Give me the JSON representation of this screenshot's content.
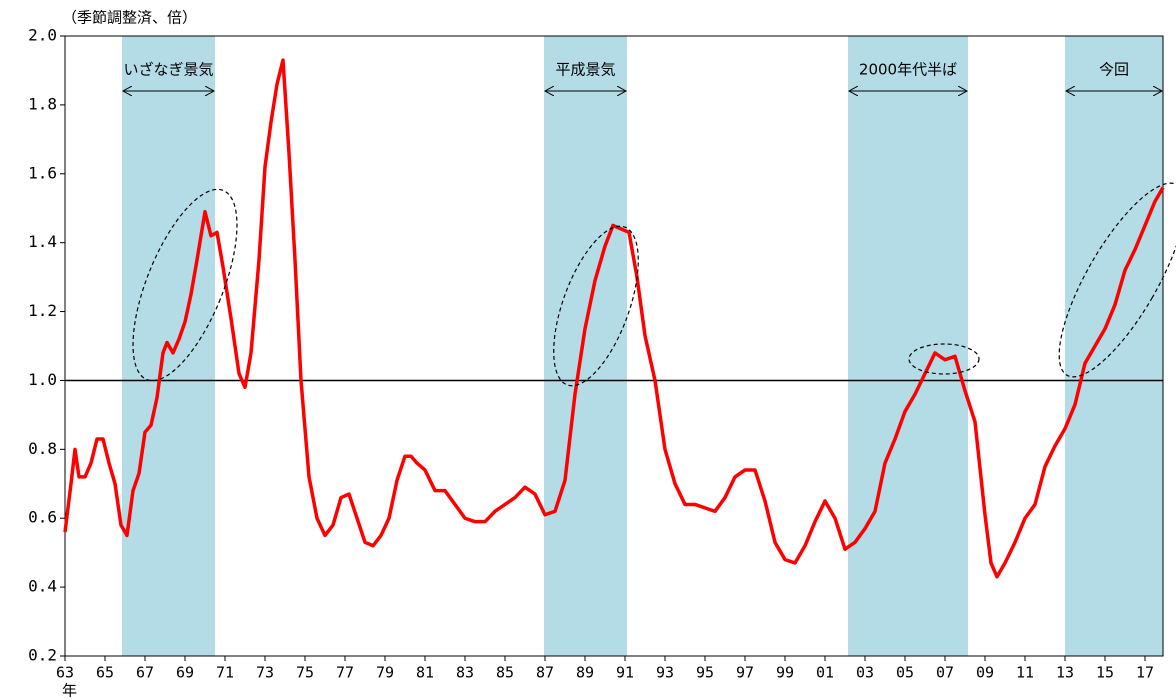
{
  "chart_data": {
    "type": "line",
    "y_unit_label": "（季節調整済、倍）",
    "x_axis_label": "年",
    "color": "#ff0000",
    "reference_line": 1,
    "xlim": [
      1963,
      2017.9
    ],
    "ylim": [
      0.2,
      2.0
    ],
    "yticks": [
      {
        "value": 0.2,
        "label": "0.2"
      },
      {
        "value": 0.4,
        "label": "0.4"
      },
      {
        "value": 0.6,
        "label": "0.6"
      },
      {
        "value": 0.8,
        "label": "0.8"
      },
      {
        "value": 1,
        "label": "1.0"
      },
      {
        "value": 1.2,
        "label": "1.2"
      },
      {
        "value": 1.4,
        "label": "1.4"
      },
      {
        "value": 1.6,
        "label": "1.6"
      },
      {
        "value": 1.8,
        "label": "1.8"
      },
      {
        "value": 2,
        "label": "2.0"
      }
    ],
    "xticks": [
      {
        "value": 1963,
        "label": "63"
      },
      {
        "value": 1965,
        "label": "65"
      },
      {
        "value": 1967,
        "label": "67"
      },
      {
        "value": 1969,
        "label": "69"
      },
      {
        "value": 1971,
        "label": "71"
      },
      {
        "value": 1973,
        "label": "73"
      },
      {
        "value": 1975,
        "label": "75"
      },
      {
        "value": 1977,
        "label": "77"
      },
      {
        "value": 1979,
        "label": "79"
      },
      {
        "value": 1981,
        "label": "81"
      },
      {
        "value": 1983,
        "label": "83"
      },
      {
        "value": 1985,
        "label": "85"
      },
      {
        "value": 1987,
        "label": "87"
      },
      {
        "value": 1989,
        "label": "89"
      },
      {
        "value": 1991,
        "label": "91"
      },
      {
        "value": 1993,
        "label": "93"
      },
      {
        "value": 1995,
        "label": "95"
      },
      {
        "value": 1997,
        "label": "97"
      },
      {
        "value": 1999,
        "label": "99"
      },
      {
        "value": 2001,
        "label": "01"
      },
      {
        "value": 2003,
        "label": "03"
      },
      {
        "value": 2005,
        "label": "05"
      },
      {
        "value": 2007,
        "label": "07"
      },
      {
        "value": 2009,
        "label": "09"
      },
      {
        "value": 2011,
        "label": "11"
      },
      {
        "value": 2013,
        "label": "13"
      },
      {
        "value": 2015,
        "label": "15"
      },
      {
        "value": 2017,
        "label": "17"
      }
    ],
    "shaded_periods": [
      {
        "label": "いざなぎ景気",
        "start": 1965.85,
        "end": 1970.5
      },
      {
        "label": "平成景気",
        "start": 1986.95,
        "end": 1991.1
      },
      {
        "label": "2000年代半ば",
        "start": 2002.15,
        "end": 2008.15
      },
      {
        "label": "今回",
        "start": 2013.0,
        "end": 2017.9
      }
    ],
    "x": [
      1963.0,
      1963.3,
      1963.5,
      1963.7,
      1964.0,
      1964.3,
      1964.6,
      1964.9,
      1965.2,
      1965.5,
      1965.8,
      1966.1,
      1966.4,
      1966.7,
      1967.0,
      1967.3,
      1967.6,
      1967.9,
      1968.1,
      1968.4,
      1968.7,
      1969.0,
      1969.3,
      1969.6,
      1970.0,
      1970.3,
      1970.6,
      1970.9,
      1971.3,
      1971.7,
      1972.0,
      1972.3,
      1972.7,
      1973.0,
      1973.3,
      1973.6,
      1973.9,
      1974.2,
      1974.5,
      1974.8,
      1975.2,
      1975.6,
      1976.0,
      1976.4,
      1976.8,
      1977.2,
      1977.6,
      1978.0,
      1978.4,
      1978.8,
      1979.2,
      1979.6,
      1980.0,
      1980.3,
      1980.6,
      1981.0,
      1981.5,
      1982.0,
      1982.5,
      1983.0,
      1983.5,
      1984.0,
      1984.5,
      1985.0,
      1985.5,
      1986.0,
      1986.5,
      1987.0,
      1987.5,
      1988.0,
      1988.5,
      1989.0,
      1989.5,
      1990.0,
      1990.4,
      1990.8,
      1991.2,
      1991.6,
      1992.0,
      1992.5,
      1993.0,
      1993.5,
      1994.0,
      1994.5,
      1995.0,
      1995.5,
      1996.0,
      1996.5,
      1997.0,
      1997.5,
      1998.0,
      1998.5,
      1999.0,
      1999.5,
      2000.0,
      2000.5,
      2001.0,
      2001.5,
      2002.0,
      2002.5,
      2003.0,
      2003.5,
      2004.0,
      2004.5,
      2005.0,
      2005.5,
      2006.0,
      2006.5,
      2007.0,
      2007.5,
      2008.0,
      2008.5,
      2009.0,
      2009.3,
      2009.6,
      2010.0,
      2010.5,
      2011.0,
      2011.5,
      2012.0,
      2012.5,
      2013.0,
      2013.5,
      2014.0,
      2014.5,
      2015.0,
      2015.5,
      2016.0,
      2016.5,
      2017.0,
      2017.5,
      2017.9
    ],
    "values": [
      0.56,
      0.7,
      0.8,
      0.72,
      0.72,
      0.76,
      0.83,
      0.83,
      0.76,
      0.7,
      0.58,
      0.55,
      0.68,
      0.73,
      0.85,
      0.87,
      0.95,
      1.08,
      1.11,
      1.08,
      1.12,
      1.17,
      1.25,
      1.35,
      1.49,
      1.42,
      1.43,
      1.33,
      1.18,
      1.02,
      0.98,
      1.08,
      1.35,
      1.62,
      1.75,
      1.86,
      1.93,
      1.66,
      1.35,
      1.0,
      0.72,
      0.6,
      0.55,
      0.58,
      0.66,
      0.67,
      0.6,
      0.53,
      0.52,
      0.55,
      0.6,
      0.71,
      0.78,
      0.78,
      0.76,
      0.74,
      0.68,
      0.68,
      0.64,
      0.6,
      0.59,
      0.59,
      0.62,
      0.64,
      0.66,
      0.69,
      0.67,
      0.61,
      0.62,
      0.71,
      0.96,
      1.15,
      1.29,
      1.39,
      1.45,
      1.44,
      1.43,
      1.3,
      1.13,
      1.0,
      0.8,
      0.7,
      0.64,
      0.64,
      0.63,
      0.62,
      0.66,
      0.72,
      0.74,
      0.74,
      0.65,
      0.53,
      0.48,
      0.47,
      0.52,
      0.59,
      0.65,
      0.6,
      0.51,
      0.53,
      0.57,
      0.62,
      0.76,
      0.83,
      0.91,
      0.96,
      1.02,
      1.08,
      1.06,
      1.07,
      0.97,
      0.88,
      0.61,
      0.47,
      0.43,
      0.47,
      0.53,
      0.6,
      0.64,
      0.75,
      0.81,
      0.86,
      0.93,
      1.05,
      1.1,
      1.15,
      1.22,
      1.32,
      1.38,
      1.45,
      1.52,
      1.56
    ]
  }
}
